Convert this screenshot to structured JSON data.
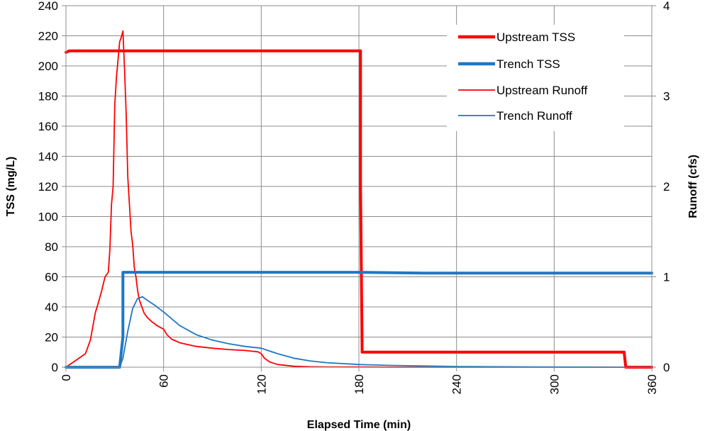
{
  "chart_data": {
    "type": "line",
    "title": "",
    "xlabel": "Elapsed Time (min)",
    "ylabel": "TSS (mg/L)",
    "y2label": "Runoff (cfs)",
    "xlim": [
      0,
      360
    ],
    "ylim": [
      0,
      240
    ],
    "y2lim": [
      0,
      4
    ],
    "xticks": [
      0,
      60,
      120,
      180,
      240,
      300,
      360
    ],
    "yticks": [
      0,
      20,
      40,
      60,
      80,
      100,
      120,
      140,
      160,
      180,
      200,
      220,
      240
    ],
    "y2ticks": [
      0,
      1,
      2,
      3,
      4
    ],
    "grid": true,
    "legend_position": "top-right",
    "series": [
      {
        "name": "Upstream TSS",
        "axis": "left",
        "color": "#ff0000",
        "weight": "thick",
        "x": [
          0,
          2,
          5,
          181,
          181,
          182,
          343,
          344,
          360
        ],
        "y": [
          209,
          210,
          210,
          210,
          120,
          10,
          10,
          0,
          0
        ]
      },
      {
        "name": "Trench TSS",
        "axis": "left",
        "color": "#1f77c4",
        "weight": "thick",
        "x": [
          0,
          33,
          35,
          35,
          180,
          220,
          360
        ],
        "y": [
          0,
          0,
          20,
          63,
          63,
          62.5,
          62.5
        ]
      },
      {
        "name": "Upstream Runoff",
        "axis": "right",
        "color": "#ff0000",
        "weight": "thin",
        "x": [
          0,
          4,
          8,
          12,
          15,
          18,
          20,
          22,
          24,
          26,
          27,
          28,
          29,
          30,
          31,
          32,
          33,
          34,
          35,
          36,
          37,
          38,
          39,
          40,
          41,
          42,
          43,
          44,
          45,
          46,
          48,
          50,
          53,
          56,
          58,
          60,
          62,
          65,
          70,
          80,
          90,
          100,
          110,
          118,
          120,
          122,
          125,
          130,
          140,
          150,
          160,
          180,
          200,
          240,
          300,
          360
        ],
        "y": [
          0,
          0.05,
          0.1,
          0.15,
          0.3,
          0.6,
          0.72,
          0.85,
          1.0,
          1.05,
          1.3,
          1.8,
          2.0,
          2.9,
          3.2,
          3.4,
          3.6,
          3.65,
          3.72,
          3.3,
          2.8,
          2.1,
          1.8,
          1.5,
          1.35,
          1.1,
          1.0,
          0.85,
          0.75,
          0.7,
          0.6,
          0.55,
          0.5,
          0.46,
          0.44,
          0.42,
          0.36,
          0.31,
          0.27,
          0.23,
          0.21,
          0.195,
          0.185,
          0.17,
          0.15,
          0.1,
          0.06,
          0.03,
          0.01,
          0.005,
          0.003,
          0.002,
          0.001,
          0,
          0,
          0
        ]
      },
      {
        "name": "Trench Runoff",
        "axis": "right",
        "color": "#1f77c4",
        "weight": "thin",
        "x": [
          0,
          33,
          35,
          38,
          41,
          44,
          47,
          50,
          55,
          60,
          70,
          80,
          90,
          100,
          110,
          120,
          125,
          130,
          140,
          150,
          160,
          180,
          200,
          240,
          300,
          360
        ],
        "y": [
          0,
          0,
          0.1,
          0.4,
          0.65,
          0.76,
          0.78,
          0.74,
          0.68,
          0.61,
          0.46,
          0.36,
          0.3,
          0.26,
          0.23,
          0.21,
          0.18,
          0.15,
          0.1,
          0.07,
          0.05,
          0.03,
          0.02,
          0.008,
          0.002,
          0
        ]
      }
    ]
  }
}
